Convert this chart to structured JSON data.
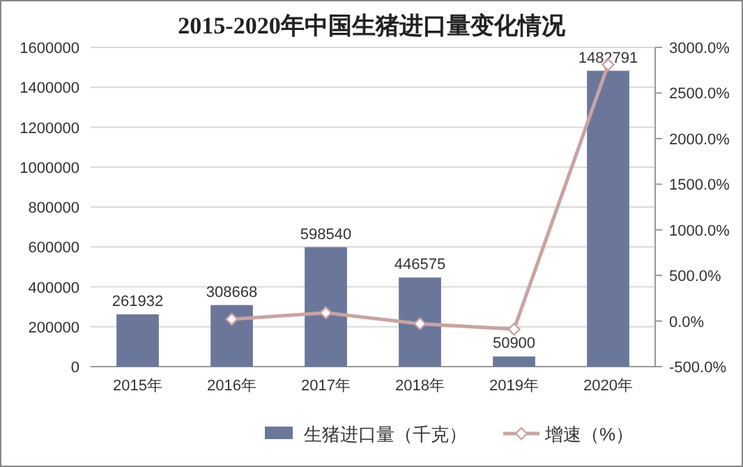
{
  "chart_data": {
    "type": "bar",
    "title": "2015-2020年中国生猪进口量变化情况",
    "categories": [
      "2015年",
      "2016年",
      "2017年",
      "2018年",
      "2019年",
      "2020年"
    ],
    "series": [
      {
        "name": "生猪进口量（千克）",
        "color": "#6b779a",
        "values": [
          261932,
          308668,
          598540,
          446575,
          50900,
          1482791
        ],
        "value_labels": [
          "261932",
          "308668",
          "598540",
          "446575",
          "50900",
          "1482791"
        ]
      },
      {
        "name": "增速（%）",
        "type": "line",
        "axis": "y2",
        "color": "#c9a3a3",
        "marker": "diamond",
        "values": [
          null,
          20,
          90,
          -30,
          -90,
          2810
        ]
      }
    ],
    "ylim": [
      0,
      1600000
    ],
    "yticks": [
      0,
      200000,
      400000,
      600000,
      800000,
      1000000,
      1200000,
      1400000,
      1600000
    ],
    "y2lim": [
      -500,
      3000
    ],
    "y2ticks": [
      {
        "value": -500,
        "label": "-500.0%"
      },
      {
        "value": 0,
        "label": "0.0%"
      },
      {
        "value": 500,
        "label": "500.0%"
      },
      {
        "value": 1000,
        "label": "1000.0%"
      },
      {
        "value": 1500,
        "label": "1500.0%"
      },
      {
        "value": 2000,
        "label": "2000.0%"
      },
      {
        "value": 2500,
        "label": "2500.0%"
      },
      {
        "value": 3000,
        "label": "3000.0%"
      }
    ],
    "grid": "y",
    "legend": "bottom"
  }
}
